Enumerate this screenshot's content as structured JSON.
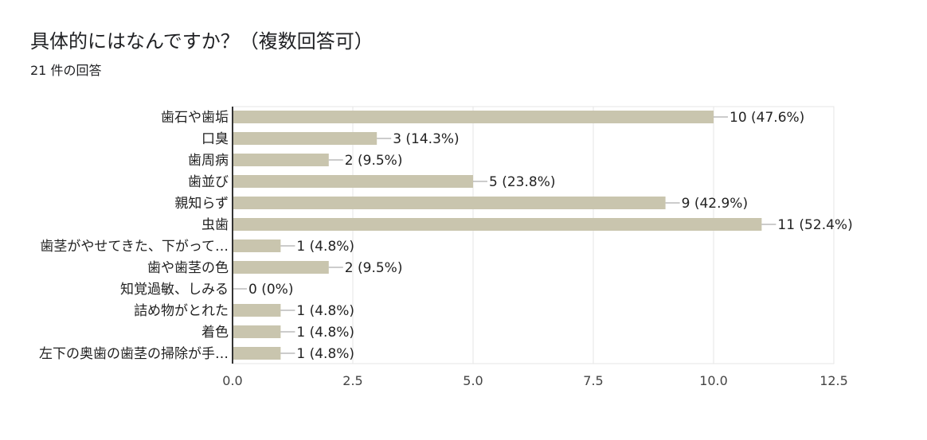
{
  "header": {
    "title": "具体的にはなんですか？（複数回答可）",
    "response_count": "21 件の回答"
  },
  "colors": {
    "bar": "#c9c5ae",
    "grid": "#e6e6e6",
    "axis": "#333333",
    "text": "#202124"
  },
  "chart_data": {
    "type": "bar",
    "orientation": "horizontal",
    "title": "具体的にはなんですか？（複数回答可）",
    "subtitle": "21 件の回答",
    "categories": [
      "歯石や歯垢",
      "口臭",
      "歯周病",
      "歯並び",
      "親知らず",
      "虫歯",
      "歯茎がやせてきた、下がって…",
      "歯や歯茎の色",
      "知覚過敏、しみる",
      "詰め物がとれた",
      "着色",
      "左下の奥歯の歯茎の掃除が手…"
    ],
    "values": [
      10,
      3,
      2,
      5,
      9,
      11,
      1,
      2,
      0,
      1,
      1,
      1
    ],
    "value_labels": [
      "10 (47.6%)",
      "3 (14.3%)",
      "2 (9.5%)",
      "5 (23.8%)",
      "9 (42.9%)",
      "11 (52.4%)",
      "1 (4.8%)",
      "2 (9.5%)",
      "0 (0%)",
      "1 (4.8%)",
      "1 (4.8%)",
      "1 (4.8%)"
    ],
    "xlim": [
      0,
      12.5
    ],
    "xticks": [
      "0.0",
      "2.5",
      "5.0",
      "7.5",
      "10.0",
      "12.5"
    ],
    "grid": true,
    "legend": "none"
  }
}
